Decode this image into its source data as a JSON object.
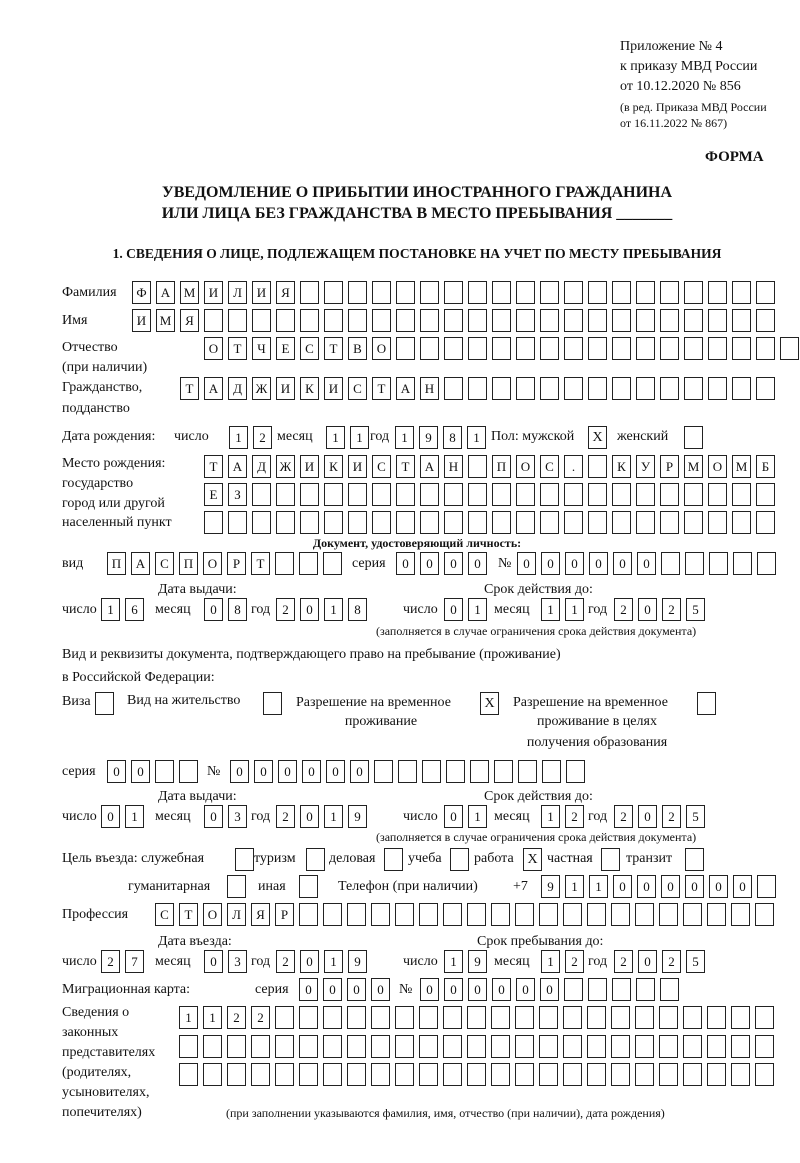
{
  "header": {
    "appendix": "Приложение № 4",
    "order": "к приказу МВД России",
    "order_date": "от 10.12.2020 № 856",
    "edition1": "(в ред. Приказа МВД России",
    "edition2": "от 16.11.2022 № 867)",
    "form_label": "ФОРМА",
    "title1": "УВЕДОМЛЕНИЕ О ПРИБЫТИИ ИНОСТРАННОГО ГРАЖДАНИНА",
    "title2": "ИЛИ ЛИЦА БЕЗ ГРАЖДАНСТВА В МЕСТО ПРЕБЫВАНИЯ _______",
    "section1": "1. СВЕДЕНИЯ О ЛИЦЕ, ПОДЛЕЖАЩЕМ ПОСТАНОВКЕ НА УЧЕТ ПО МЕСТУ ПРЕБЫВАНИЯ"
  },
  "labels": {
    "surname": "Фамилия",
    "name": "Имя",
    "patronymic": "Отчество",
    "patronymic2": "(при наличии)",
    "citizenship": "Гражданство,",
    "citizenship2": "подданство",
    "dob": "Дата рождения:",
    "day": "число",
    "month": "месяц",
    "year": "год",
    "sex": "Пол: мужской",
    "female": "женский",
    "birthplace1": "Место рождения:",
    "birthplace2": "государство",
    "birthplace3": "город или другой",
    "birthplace4": "населенный пункт",
    "id_doc": "Документ, удостоверяющий личность:",
    "kind": "вид",
    "series": "серия",
    "number": "№",
    "issue_date": "Дата выдачи:",
    "valid_until": "Срок действия до:",
    "valid_note": "(заполняется в случае ограничения срока действия документа)",
    "right_doc1": "Вид и реквизиты документа, подтверждающего право на пребывание (проживание)",
    "right_doc2": "в Российской Федерации:",
    "visa": "Виза",
    "residence": "Вид на жительство",
    "temp_res1": "Разрешение на временное",
    "temp_res2": "проживание",
    "temp_edu1": "Разрешение на временное",
    "temp_edu2": "проживание в целях",
    "temp_edu3": "получения образования",
    "purpose": "Цель въезда: служебная",
    "tourism": "туризм",
    "business": "деловая",
    "study": "учеба",
    "work": "работа",
    "private": "частная",
    "transit": "транзит",
    "humanitarian": "гуманитарная",
    "other": "иная",
    "phone": "Телефон (при наличии)",
    "phone_prefix": "+7",
    "profession": "Профессия",
    "entry_date": "Дата въезда:",
    "stay_until": "Срок пребывания до:",
    "migration_card": "Миграционная карта:",
    "reps1": "Сведения о",
    "reps2": "законных",
    "reps3": "представителях",
    "reps4": "(родителях,",
    "reps5": "усыновителях,",
    "reps6": "попечителях)",
    "reps_note": "(при заполнении указываются фамилия, имя, отчество (при наличии), дата рождения)"
  },
  "person": {
    "surname": [
      "Ф",
      "А",
      "М",
      "И",
      "Л",
      "И",
      "Я",
      "",
      "",
      "",
      "",
      "",
      "",
      "",
      "",
      "",
      "",
      "",
      "",
      "",
      "",
      "",
      "",
      "",
      "",
      "",
      ""
    ],
    "name": [
      "И",
      "М",
      "Я",
      "",
      "",
      "",
      "",
      "",
      "",
      "",
      "",
      "",
      "",
      "",
      "",
      "",
      "",
      "",
      "",
      "",
      "",
      "",
      "",
      "",
      "",
      "",
      ""
    ],
    "patronymic": [
      "О",
      "Т",
      "Ч",
      "Е",
      "С",
      "Т",
      "В",
      "О",
      "",
      "",
      "",
      "",
      "",
      "",
      "",
      "",
      "",
      "",
      "",
      "",
      "",
      "",
      "",
      "",
      ""
    ],
    "citizenship": [
      "Т",
      "А",
      "Д",
      "Ж",
      "И",
      "К",
      "И",
      "С",
      "Т",
      "А",
      "Н",
      "",
      "",
      "",
      "",
      "",
      "",
      "",
      "",
      "",
      "",
      "",
      "",
      "",
      ""
    ],
    "dob_day": [
      "1",
      "2"
    ],
    "dob_month": [
      "1",
      "1"
    ],
    "dob_year": [
      "1",
      "9",
      "8",
      "1"
    ],
    "sex_male": "X",
    "sex_female": "",
    "birthplace1": [
      "Т",
      "А",
      "Д",
      "Ж",
      "И",
      "К",
      "И",
      "С",
      "Т",
      "А",
      "Н",
      "",
      "П",
      "О",
      "С",
      ".",
      "",
      "К",
      "У",
      "Р",
      "М",
      "О",
      "М",
      "Б"
    ],
    "birthplace2": [
      "Е",
      "З",
      "",
      "",
      "",
      "",
      "",
      "",
      "",
      "",
      "",
      "",
      "",
      "",
      "",
      "",
      "",
      "",
      "",
      "",
      "",
      "",
      "",
      ""
    ],
    "birthplace3": [
      "",
      "",
      "",
      "",
      "",
      "",
      "",
      "",
      "",
      "",
      "",
      "",
      "",
      "",
      "",
      "",
      "",
      "",
      "",
      "",
      "",
      "",
      "",
      ""
    ]
  },
  "id_document": {
    "kind": [
      "П",
      "А",
      "С",
      "П",
      "О",
      "Р",
      "Т",
      "",
      "",
      ""
    ],
    "series": [
      "0",
      "0",
      "0",
      "0"
    ],
    "number": [
      "0",
      "0",
      "0",
      "0",
      "0",
      "0",
      "",
      "",
      "",
      "",
      ""
    ],
    "issue_day": [
      "1",
      "6"
    ],
    "issue_month": [
      "0",
      "8"
    ],
    "issue_year": [
      "2",
      "0",
      "1",
      "8"
    ],
    "valid_day": [
      "0",
      "1"
    ],
    "valid_month": [
      "1",
      "1"
    ],
    "valid_year": [
      "2",
      "0",
      "2",
      "5"
    ]
  },
  "right_document": {
    "visa": "",
    "residence": "",
    "temp_residence": "X",
    "temp_residence_edu": "",
    "series": [
      "0",
      "0",
      "",
      ""
    ],
    "number": [
      "0",
      "0",
      "0",
      "0",
      "0",
      "0",
      "",
      "",
      "",
      "",
      "",
      "",
      "",
      "",
      ""
    ],
    "issue_day": [
      "0",
      "1"
    ],
    "issue_month": [
      "0",
      "3"
    ],
    "issue_year": [
      "2",
      "0",
      "1",
      "9"
    ],
    "valid_day": [
      "0",
      "1"
    ],
    "valid_month": [
      "1",
      "2"
    ],
    "valid_year": [
      "2",
      "0",
      "2",
      "5"
    ]
  },
  "purpose": {
    "official": "",
    "tourism": "",
    "business": "",
    "study": "",
    "work": "X",
    "private": "",
    "transit": "",
    "humanitarian": "",
    "other": ""
  },
  "phone": [
    "9",
    "1",
    "1",
    "0",
    "0",
    "0",
    "0",
    "0",
    "0",
    ""
  ],
  "profession": [
    "С",
    "Т",
    "О",
    "Л",
    "Я",
    "Р",
    "",
    "",
    "",
    "",
    "",
    "",
    "",
    "",
    "",
    "",
    "",
    "",
    "",
    "",
    "",
    "",
    "",
    "",
    "",
    ""
  ],
  "stay": {
    "entry_day": [
      "2",
      "7"
    ],
    "entry_month": [
      "0",
      "3"
    ],
    "entry_year": [
      "2",
      "0",
      "1",
      "9"
    ],
    "until_day": [
      "1",
      "9"
    ],
    "until_month": [
      "1",
      "2"
    ],
    "until_year": [
      "2",
      "0",
      "2",
      "5"
    ]
  },
  "migration_card": {
    "series": [
      "0",
      "0",
      "0",
      "0"
    ],
    "number": [
      "0",
      "0",
      "0",
      "0",
      "0",
      "0",
      "",
      "",
      "",
      "",
      ""
    ]
  },
  "representatives": {
    "row1": [
      "1",
      "1",
      "2",
      "2",
      "",
      "",
      "",
      "",
      "",
      "",
      "",
      "",
      "",
      "",
      "",
      "",
      "",
      "",
      "",
      "",
      "",
      "",
      "",
      "",
      ""
    ],
    "row2": [
      "",
      "",
      "",
      "",
      "",
      "",
      "",
      "",
      "",
      "",
      "",
      "",
      "",
      "",
      "",
      "",
      "",
      "",
      "",
      "",
      "",
      "",
      "",
      "",
      ""
    ],
    "row3": [
      "",
      "",
      "",
      "",
      "",
      "",
      "",
      "",
      "",
      "",
      "",
      "",
      "",
      "",
      "",
      "",
      "",
      "",
      "",
      "",
      "",
      "",
      "",
      "",
      ""
    ]
  }
}
